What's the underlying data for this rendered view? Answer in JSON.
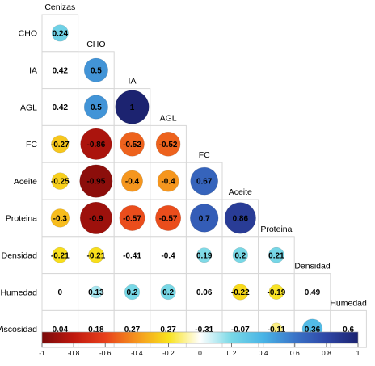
{
  "chart_data": {
    "type": "heatmap",
    "subtype": "correlation-lower-triangle-circles",
    "variables": [
      "Cenizas",
      "CHO",
      "IA",
      "AGL",
      "FC",
      "Aceite",
      "Proteina",
      "Densidad",
      "Humedad",
      "Viscosidad"
    ],
    "row_labels": [
      "CHO",
      "IA",
      "AGL",
      "FC",
      "Aceite",
      "Proteina",
      "Densidad",
      "Humedad",
      "Viscosidad"
    ],
    "column_labels": [
      "Cenizas",
      "CHO",
      "IA",
      "AGL",
      "FC",
      "Aceite",
      "Proteina",
      "Densidad",
      "Humedad"
    ],
    "matrix": [
      [
        0.24
      ],
      [
        0.42,
        0.5
      ],
      [
        0.42,
        0.5,
        1
      ],
      [
        -0.27,
        -0.86,
        -0.52,
        -0.52
      ],
      [
        -0.25,
        -0.95,
        -0.4,
        -0.4,
        0.67
      ],
      [
        -0.3,
        -0.9,
        -0.57,
        -0.57,
        0.7,
        0.86
      ],
      [
        -0.21,
        -0.21,
        -0.41,
        -0.4,
        0.19,
        0.2,
        0.21
      ],
      [
        0,
        0.13,
        0.2,
        0.2,
        0.06,
        -0.22,
        -0.19,
        0.49
      ],
      [
        0.04,
        0.18,
        0.27,
        0.27,
        -0.31,
        -0.07,
        -0.11,
        0.36,
        0.6
      ]
    ],
    "labels": [
      [
        "0.24"
      ],
      [
        "0.42",
        "0.5"
      ],
      [
        "0.42",
        "0.5",
        "1"
      ],
      [
        "-0.27",
        "-0.86",
        "-0.52",
        "-0.52"
      ],
      [
        "-0.25",
        "-0.95",
        "-0.4",
        "-0.4",
        "0.67"
      ],
      [
        "-0.3",
        "-0.9",
        "-0.57",
        "-0.57",
        "0.7",
        "0.86"
      ],
      [
        "-0.21",
        "-0.21",
        "-0.41",
        "-0.4",
        "0.19",
        "0.2",
        "0.21"
      ],
      [
        "0",
        "0.13",
        "0.2",
        "0.2",
        "0.06",
        "-0.22",
        "-0.19",
        "0.49"
      ],
      [
        "0.04",
        "0.18",
        "0.27",
        "0.27",
        "-0.31",
        "-0.07",
        "-0.11",
        "0.36",
        "0.6"
      ]
    ],
    "circles_drawn": [
      [
        true
      ],
      [
        false,
        true
      ],
      [
        false,
        true,
        true
      ],
      [
        true,
        true,
        true,
        true
      ],
      [
        true,
        true,
        true,
        true,
        true
      ],
      [
        true,
        true,
        true,
        true,
        true,
        true
      ],
      [
        true,
        true,
        false,
        false,
        true,
        true,
        true
      ],
      [
        false,
        true,
        true,
        true,
        false,
        true,
        true,
        false
      ],
      [
        false,
        false,
        false,
        false,
        false,
        false,
        true,
        true,
        false
      ]
    ],
    "colorbar": {
      "range": [
        -1,
        1
      ],
      "ticks": [
        -1,
        -0.8,
        -0.6,
        -0.4,
        -0.2,
        0,
        0.2,
        0.4,
        0.6,
        0.8,
        1
      ],
      "tick_labels": [
        "-1",
        "-0.8",
        "-0.6",
        "-0.4",
        "-0.2",
        "0",
        "0.2",
        "0.4",
        "0.6",
        "0.8",
        "1"
      ],
      "stops": [
        {
          "v": -1,
          "color": "#7a0a0a"
        },
        {
          "v": -0.8,
          "color": "#c0180e"
        },
        {
          "v": -0.6,
          "color": "#e8401c"
        },
        {
          "v": -0.4,
          "color": "#f5961e"
        },
        {
          "v": -0.2,
          "color": "#f8e21c"
        },
        {
          "v": 0,
          "color": "#ffffff"
        },
        {
          "v": 0.2,
          "color": "#78d8e6"
        },
        {
          "v": 0.4,
          "color": "#49b4e6"
        },
        {
          "v": 0.6,
          "color": "#3a74c8"
        },
        {
          "v": 0.8,
          "color": "#2e46a6"
        },
        {
          "v": 1,
          "color": "#1c2370"
        }
      ]
    },
    "label_color": "#000000",
    "grid_color": "#d7d7d7"
  }
}
